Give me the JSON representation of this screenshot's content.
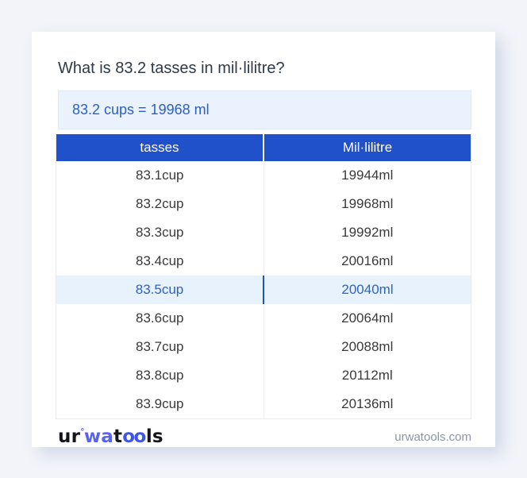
{
  "page": {
    "title": "What is 83.2 tasses in mil·lilitre?",
    "answer": "83.2 cups = 19968 ml"
  },
  "table": {
    "headers": [
      "tasses",
      "Mil·lilitre"
    ],
    "rows": [
      {
        "cups": "83.1cup",
        "ml": "19944ml"
      },
      {
        "cups": "83.2cup",
        "ml": "19968ml"
      },
      {
        "cups": "83.3cup",
        "ml": "19992ml"
      },
      {
        "cups": "83.4cup",
        "ml": "20016ml"
      },
      {
        "cups": "83.5cup",
        "ml": "20040ml"
      },
      {
        "cups": "83.6cup",
        "ml": "20064ml"
      },
      {
        "cups": "83.7cup",
        "ml": "20088ml"
      },
      {
        "cups": "83.8cup",
        "ml": "20112ml"
      },
      {
        "cups": "83.9cup",
        "ml": "20136ml"
      }
    ],
    "highlighted_row": "83.5cup"
  },
  "footer": {
    "logo": {
      "p1": "ur",
      "degree": "°",
      "p2": "wa",
      "p3": "t",
      "p4": "oo",
      "p5": "ls"
    },
    "domain": "urwatools.com"
  },
  "colors": {
    "page_bg": "#f2f4f9",
    "card_bg": "#ffffff",
    "header_bg": "#2150cb",
    "header_text": "#ffffff",
    "answer_bg": "#eaf2fd",
    "answer_text": "#2b5fc5",
    "highlight_bg": "#e8f2fd",
    "highlight_text": "#2b64c5",
    "body_text": "#3a3a3a",
    "title_text": "#2e3a4a",
    "domain_text": "#8d95a3",
    "logo_blue": "#5b63f2"
  }
}
